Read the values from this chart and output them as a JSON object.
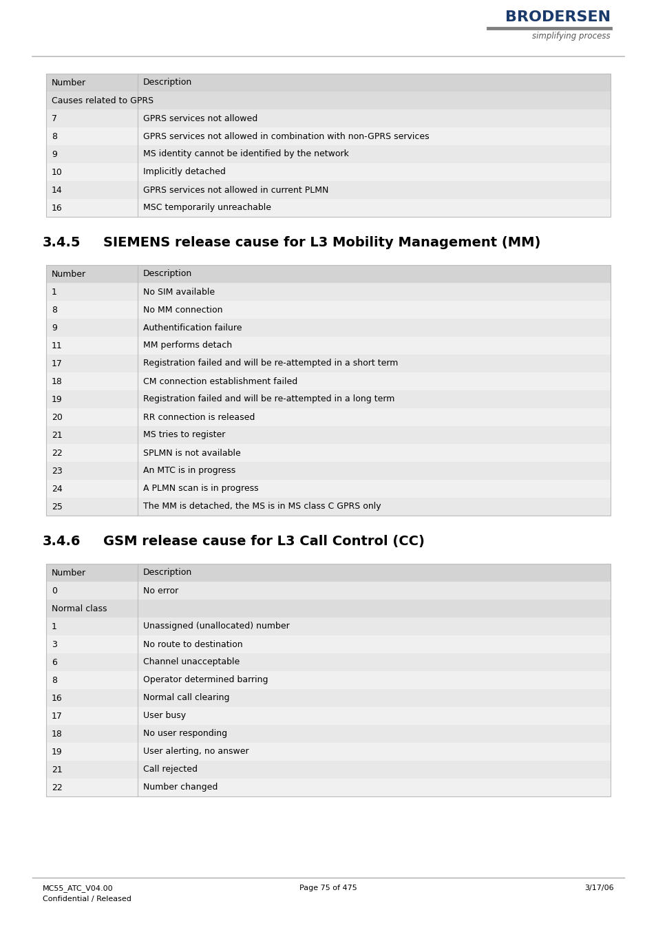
{
  "page_bg": "#ffffff",
  "logo_text": "BRODERSEN",
  "logo_sub": "simplifying process",
  "logo_color": "#1a3a6b",
  "logo_bar_color": "#808080",
  "header_line_color": "#bbbbbb",
  "footer_line_color": "#aaaaaa",
  "footer_left1": "MC55_ATC_V04.00",
  "footer_left2": "Confidential / Released",
  "footer_center": "Page 75 of 475",
  "footer_right": "3/17/06",
  "table_header_bg": "#d3d3d3",
  "table_row_bg_odd": "#e8e8e8",
  "table_row_bg_even": "#f0f0f0",
  "table_section_bg": "#dcdcdc",
  "table_border_color": "#bbbbbb",
  "section1_title": "3.4.5",
  "section1_heading": "SIEMENS release cause for L3 Mobility Management (MM)",
  "section2_title": "3.4.6",
  "section2_heading": "GSM release cause for L3 Call Control (CC)",
  "table1_header": [
    "Number",
    "Description"
  ],
  "table1_section_label": "Causes related to GPRS",
  "table1_rows": [
    [
      "7",
      "GPRS services not allowed"
    ],
    [
      "8",
      "GPRS services not allowed in combination with non-GPRS services"
    ],
    [
      "9",
      "MS identity cannot be identified by the network"
    ],
    [
      "10",
      "Implicitly detached"
    ],
    [
      "14",
      "GPRS services not allowed in current PLMN"
    ],
    [
      "16",
      "MSC temporarily unreachable"
    ]
  ],
  "table2_header": [
    "Number",
    "Description"
  ],
  "table2_rows": [
    [
      "1",
      "No SIM available"
    ],
    [
      "8",
      "No MM connection"
    ],
    [
      "9",
      "Authentification failure"
    ],
    [
      "11",
      "MM performs detach"
    ],
    [
      "17",
      "Registration failed and will be re-attempted in a short term"
    ],
    [
      "18",
      "CM connection establishment failed"
    ],
    [
      "19",
      "Registration failed and will be re-attempted in a long term"
    ],
    [
      "20",
      "RR connection is released"
    ],
    [
      "21",
      "MS tries to register"
    ],
    [
      "22",
      "SPLMN is not available"
    ],
    [
      "23",
      "An MTC is in progress"
    ],
    [
      "24",
      "A PLMN scan is in progress"
    ],
    [
      "25",
      "The MM is detached, the MS is in MS class C GPRS only"
    ]
  ],
  "table3_header": [
    "Number",
    "Description"
  ],
  "table3_row0": [
    "0",
    "No error"
  ],
  "table3_section_label": "Normal class",
  "table3_rows": [
    [
      "1",
      "Unassigned (unallocated) number"
    ],
    [
      "3",
      "No route to destination"
    ],
    [
      "6",
      "Channel unacceptable"
    ],
    [
      "8",
      "Operator determined barring"
    ],
    [
      "16",
      "Normal call clearing"
    ],
    [
      "17",
      "User busy"
    ],
    [
      "18",
      "No user responding"
    ],
    [
      "19",
      "User alerting, no answer"
    ],
    [
      "21",
      "Call rejected"
    ],
    [
      "22",
      "Number changed"
    ]
  ],
  "font_size_body": 9.0,
  "font_size_section": 14.0,
  "font_size_footer": 8.0,
  "font_size_logo": 16.0
}
